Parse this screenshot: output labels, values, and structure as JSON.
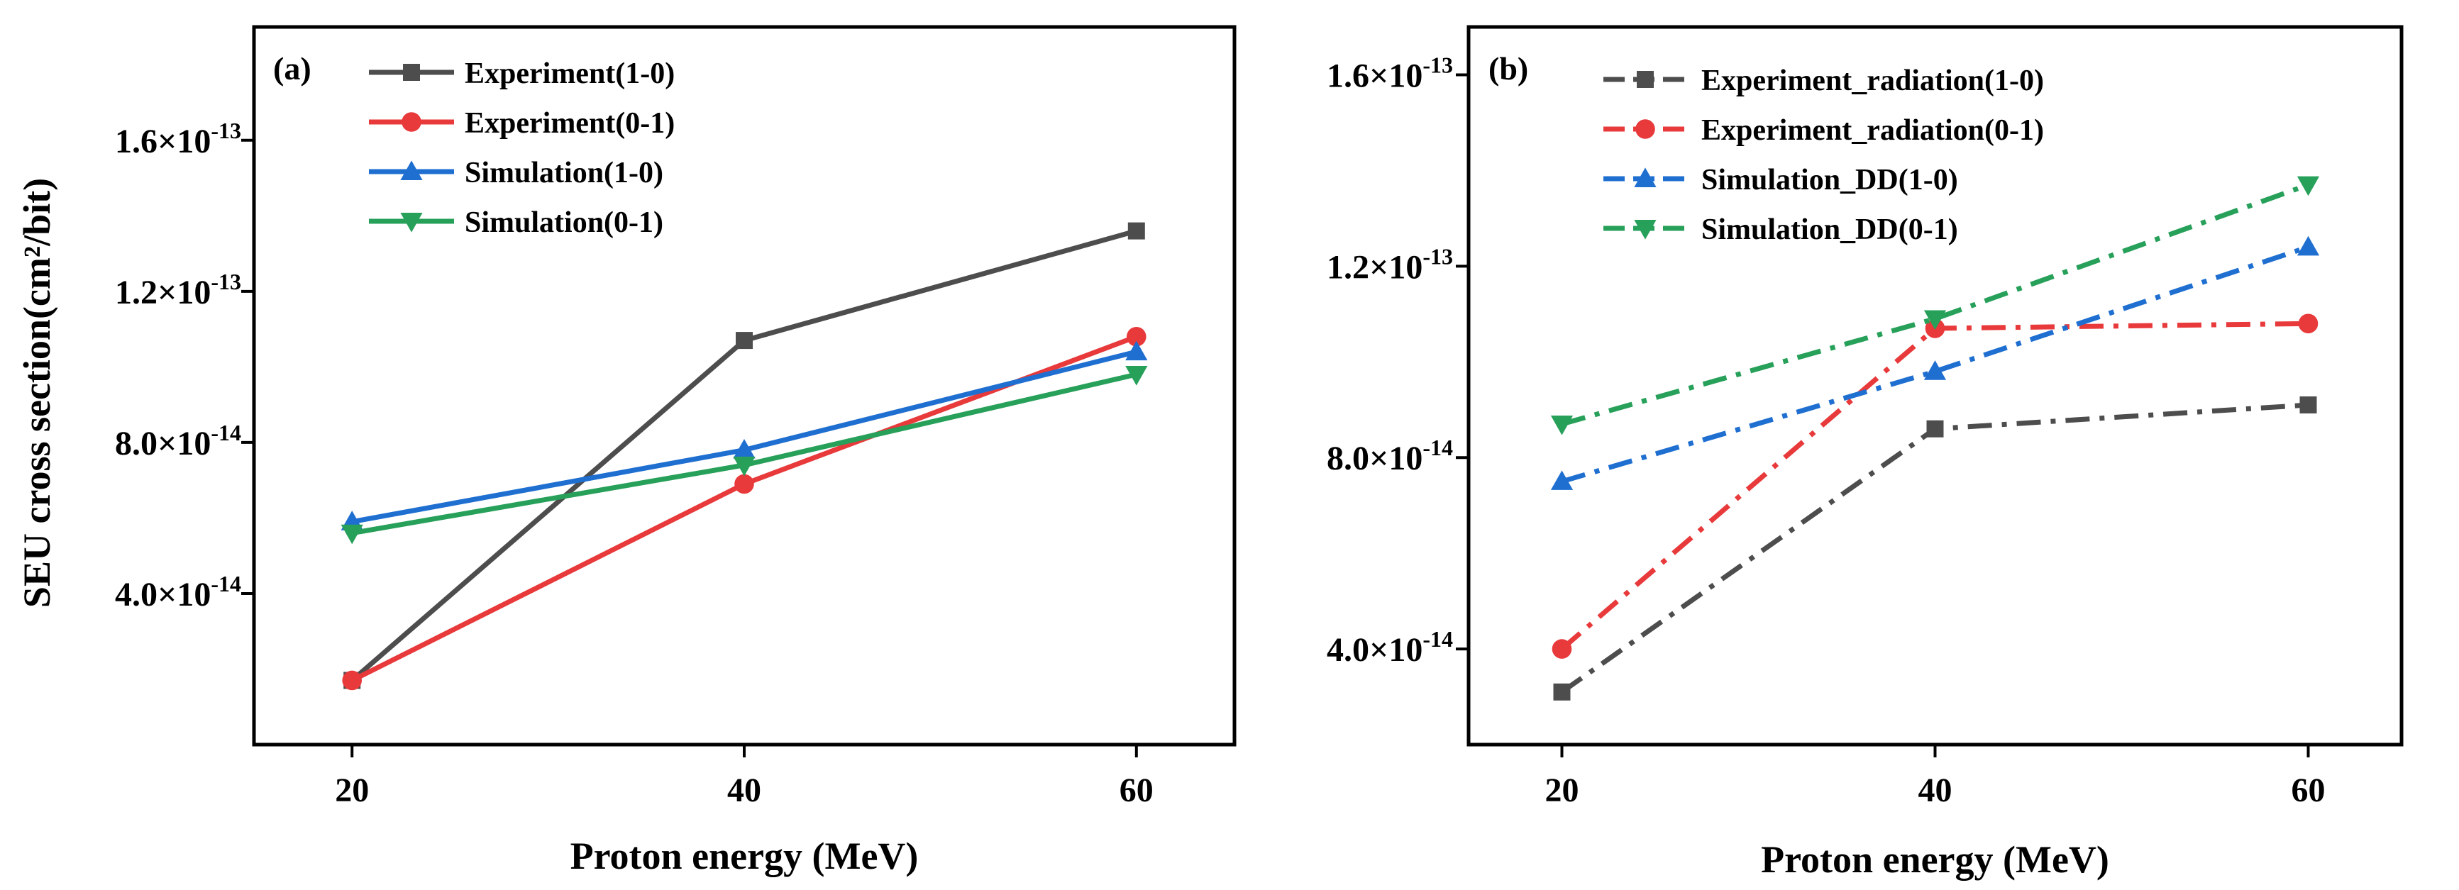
{
  "chart_data": [
    {
      "panel": "(a)",
      "type": "line",
      "line_style": "solid",
      "xlabel": "Proton energy (MeV)",
      "ylabel": "SEU cross section(cm²/bit)",
      "x": [
        20,
        40,
        60
      ],
      "xlim": [
        15,
        65
      ],
      "ylim": [
        0,
        1.9e-13
      ],
      "xticks": [
        20,
        40,
        60
      ],
      "yticks": [
        {
          "value": 4e-14,
          "mantissa": "4.0",
          "exp": "-14"
        },
        {
          "value": 8e-14,
          "mantissa": "8.0",
          "exp": "-14"
        },
        {
          "value": 1.2e-13,
          "mantissa": "1.2",
          "exp": "-13"
        },
        {
          "value": 1.6e-13,
          "mantissa": "1.6",
          "exp": "-13"
        }
      ],
      "legend_position": "top-left",
      "series": [
        {
          "name": "Experiment(1-0)",
          "color": "#4d4d4d",
          "marker": "square",
          "values": [
            1.7e-14,
            1.07e-13,
            1.36e-13
          ]
        },
        {
          "name": "Experiment(0-1)",
          "color": "#e8393b",
          "marker": "circle",
          "values": [
            1.7e-14,
            6.9e-14,
            1.08e-13
          ]
        },
        {
          "name": "Simulation(1-0)",
          "color": "#1f6fd1",
          "marker": "triangle-up",
          "values": [
            5.9e-14,
            7.8e-14,
            1.04e-13
          ]
        },
        {
          "name": "Simulation(0-1)",
          "color": "#27a05a",
          "marker": "triangle-down",
          "values": [
            5.6e-14,
            7.4e-14,
            9.8e-14
          ]
        }
      ]
    },
    {
      "panel": "(b)",
      "type": "line",
      "line_style": "dash-dot",
      "xlabel": "Proton energy (MeV)",
      "ylabel": "",
      "x": [
        20,
        40,
        60
      ],
      "xlim": [
        15,
        65
      ],
      "ylim": [
        2e-14,
        1.7e-13
      ],
      "xticks": [
        20,
        40,
        60
      ],
      "yticks": [
        {
          "value": 4e-14,
          "mantissa": "4.0",
          "exp": "-14"
        },
        {
          "value": 8e-14,
          "mantissa": "8.0",
          "exp": "-14"
        },
        {
          "value": 1.2e-13,
          "mantissa": "1.2",
          "exp": "-13"
        },
        {
          "value": 1.6e-13,
          "mantissa": "1.6",
          "exp": "-13"
        }
      ],
      "legend_position": "top-left",
      "series": [
        {
          "name": "Experiment_radiation(1-0)",
          "color": "#4d4d4d",
          "marker": "square",
          "values": [
            3.1e-14,
            8.6e-14,
            9.1e-14
          ]
        },
        {
          "name": "Experiment_radiation(0-1)",
          "color": "#e8393b",
          "marker": "circle",
          "values": [
            4e-14,
            1.07e-13,
            1.08e-13
          ]
        },
        {
          "name": "Simulation_DD(1-0)",
          "color": "#1f6fd1",
          "marker": "triangle-up",
          "values": [
            7.5e-14,
            9.8e-14,
            1.24e-13
          ]
        },
        {
          "name": "Simulation_DD(0-1)",
          "color": "#27a05a",
          "marker": "triangle-down",
          "values": [
            8.7e-14,
            1.09e-13,
            1.37e-13
          ]
        }
      ]
    }
  ]
}
